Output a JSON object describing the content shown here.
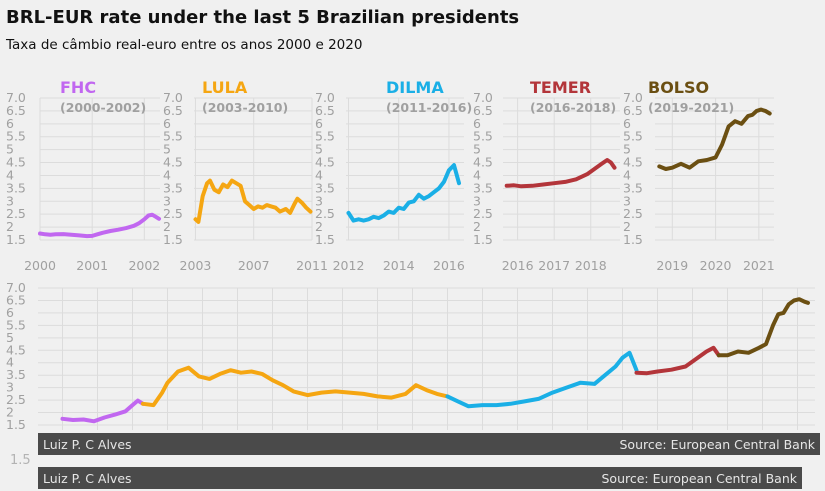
{
  "title": "BRL-EUR rate under the last 5 Brazilian presidents",
  "subtitle": "Taxa de câmbio real-euro entre os anos 2000 e 2020",
  "footer": {
    "author": "Luiz P. C Alves",
    "source": "Source: European Central Bank",
    "author_dup": "Luiz P. C Alves",
    "source_dup": "Source: European Central Bank"
  },
  "colors": {
    "FHC": "#c167f0",
    "LULA": "#f5a612",
    "DILMA": "#1aafe6",
    "TEMER": "#b3353a",
    "BOLSO": "#6b4f12",
    "grid": "#dcdcdc",
    "ticks": "#a0a0a0"
  },
  "chart_data": [
    {
      "type": "line",
      "name": "FHC",
      "period": "(2000-2002)",
      "xlim": [
        2000,
        2002.3
      ],
      "ylim": [
        1.5,
        7.0
      ],
      "yticks": [
        "1.5",
        "2",
        "2.5",
        "3",
        "3.5",
        "4",
        "4.5",
        "5",
        "5.5",
        "6",
        "6.5",
        "7.0"
      ],
      "xticks": [
        {
          "v": 2000,
          "label": "2000"
        },
        {
          "v": 2001,
          "label": "2001"
        },
        {
          "v": 2002,
          "label": "2002"
        }
      ],
      "x": [
        2000.0,
        2000.1,
        2000.2,
        2000.3,
        2000.45,
        2000.6,
        2000.75,
        2000.9,
        2001.0,
        2001.1,
        2001.2,
        2001.35,
        2001.5,
        2001.65,
        2001.8,
        2001.9,
        2002.0,
        2002.08,
        2002.15,
        2002.22,
        2002.28
      ],
      "y": [
        1.75,
        1.72,
        1.7,
        1.72,
        1.73,
        1.7,
        1.68,
        1.65,
        1.66,
        1.72,
        1.78,
        1.85,
        1.9,
        1.96,
        2.05,
        2.15,
        2.3,
        2.45,
        2.48,
        2.4,
        2.32
      ]
    },
    {
      "type": "line",
      "name": "LULA",
      "period": "(2003-2010)",
      "xlim": [
        2002.9,
        2011.0
      ],
      "ylim": [
        1.5,
        7.0
      ],
      "yticks": [
        "1.5",
        "2",
        "2.5",
        "3",
        "3.5",
        "4",
        "4.5",
        "5",
        "5.5",
        "6",
        "6.5",
        "7.0"
      ],
      "xticks": [
        {
          "v": 2003,
          "label": "2003"
        },
        {
          "v": 2007,
          "label": "2007"
        },
        {
          "v": 2011,
          "label": "2011"
        }
      ],
      "x": [
        2003.0,
        2003.2,
        2003.5,
        2003.8,
        2004.0,
        2004.3,
        2004.6,
        2004.9,
        2005.2,
        2005.5,
        2005.8,
        2006.1,
        2006.4,
        2006.7,
        2007.0,
        2007.3,
        2007.6,
        2007.9,
        2008.2,
        2008.5,
        2008.8,
        2009.0,
        2009.2,
        2009.5,
        2009.8,
        2010.0,
        2010.3,
        2010.6,
        2010.9
      ],
      "y": [
        2.3,
        2.2,
        3.2,
        3.7,
        3.8,
        3.45,
        3.35,
        3.65,
        3.55,
        3.8,
        3.7,
        3.6,
        3.0,
        2.85,
        2.7,
        2.8,
        2.75,
        2.85,
        2.8,
        2.75,
        2.6,
        2.65,
        2.7,
        2.55,
        2.9,
        3.1,
        2.95,
        2.75,
        2.6
      ]
    },
    {
      "type": "line",
      "name": "DILMA",
      "period": "(2011-2016)",
      "xlim": [
        2011.9,
        2016.6
      ],
      "ylim": [
        1.5,
        7.0
      ],
      "yticks": [
        "1.5",
        "2",
        "2.5",
        "3",
        "3.5",
        "4",
        "4.5",
        "5",
        "5.5",
        "6",
        "6.5",
        "7.0"
      ],
      "xticks": [
        {
          "v": 2012,
          "label": "2012"
        },
        {
          "v": 2014,
          "label": "2014"
        },
        {
          "v": 2016,
          "label": "2016"
        }
      ],
      "x": [
        2012.0,
        2012.2,
        2012.4,
        2012.6,
        2012.8,
        2013.0,
        2013.2,
        2013.4,
        2013.6,
        2013.8,
        2014.0,
        2014.2,
        2014.4,
        2014.6,
        2014.8,
        2015.0,
        2015.2,
        2015.4,
        2015.6,
        2015.8,
        2016.0,
        2016.2,
        2016.4
      ],
      "y": [
        2.55,
        2.25,
        2.3,
        2.25,
        2.3,
        2.4,
        2.35,
        2.45,
        2.6,
        2.55,
        2.75,
        2.7,
        2.95,
        3.0,
        3.25,
        3.1,
        3.2,
        3.35,
        3.5,
        3.75,
        4.2,
        4.4,
        3.7
      ]
    },
    {
      "type": "line",
      "name": "TEMER",
      "period": "(2016-2018)",
      "xlim": [
        2015.6,
        2018.8
      ],
      "ylim": [
        1.5,
        7.0
      ],
      "yticks": [
        "1.5",
        "2",
        "2.5",
        "3",
        "3.5",
        "4",
        "4.5",
        "5",
        "5.5",
        "6",
        "6.5",
        "7.0"
      ],
      "xticks": [
        {
          "v": 2016,
          "label": "2016"
        },
        {
          "v": 2017,
          "label": "2017"
        },
        {
          "v": 2018,
          "label": "2018"
        }
      ],
      "x": [
        2015.7,
        2015.9,
        2016.1,
        2016.4,
        2016.7,
        2017.0,
        2017.3,
        2017.6,
        2017.9,
        2018.1,
        2018.3,
        2018.45,
        2018.55,
        2018.65
      ],
      "y": [
        3.6,
        3.62,
        3.58,
        3.6,
        3.65,
        3.7,
        3.75,
        3.85,
        4.05,
        4.25,
        4.45,
        4.6,
        4.5,
        4.3
      ]
    },
    {
      "type": "line",
      "name": "BOLSO",
      "period": "(2019-2021)",
      "xlim": [
        2018.6,
        2021.35
      ],
      "ylim": [
        1.5,
        7.0
      ],
      "yticks": [
        "1.5",
        "2",
        "2.5",
        "3",
        "3.5",
        "4",
        "4.5",
        "5",
        "5.5",
        "6",
        "6.5",
        "7.0"
      ],
      "xticks": [
        {
          "v": 2019,
          "label": "2019"
        },
        {
          "v": 2020,
          "label": "2020"
        },
        {
          "v": 2021,
          "label": "2021"
        }
      ],
      "x": [
        2018.7,
        2018.85,
        2019.0,
        2019.2,
        2019.4,
        2019.6,
        2019.8,
        2020.0,
        2020.15,
        2020.3,
        2020.45,
        2020.6,
        2020.75,
        2020.85,
        2020.95,
        2021.05,
        2021.15,
        2021.25
      ],
      "y": [
        4.35,
        4.25,
        4.3,
        4.45,
        4.3,
        4.55,
        4.6,
        4.7,
        5.2,
        5.9,
        6.1,
        6.0,
        6.3,
        6.35,
        6.5,
        6.55,
        6.5,
        6.4
      ]
    },
    {
      "type": "line",
      "name": "combined",
      "xlim": [
        1999.3,
        2021.5
      ],
      "ylim": [
        1.3,
        7.0
      ],
      "yticks": [
        "1.5",
        "2",
        "2.5",
        "3",
        "3.5",
        "4",
        "4.5",
        "5",
        "5.5",
        "6",
        "6.5",
        "7.0"
      ],
      "series": [
        {
          "name": "FHC",
          "x": [
            2000.0,
            2000.3,
            2000.6,
            2000.9,
            2001.2,
            2001.5,
            2001.8,
            2002.0,
            2002.15,
            2002.3
          ],
          "y": [
            1.75,
            1.7,
            1.72,
            1.65,
            1.8,
            1.92,
            2.05,
            2.3,
            2.48,
            2.35
          ]
        },
        {
          "name": "LULA",
          "x": [
            2002.3,
            2002.6,
            2002.85,
            2003.0,
            2003.3,
            2003.6,
            2003.9,
            2004.2,
            2004.5,
            2004.8,
            2005.1,
            2005.4,
            2005.7,
            2006.0,
            2006.3,
            2006.6,
            2007.0,
            2007.4,
            2007.8,
            2008.2,
            2008.6,
            2009.0,
            2009.4,
            2009.8,
            2010.1,
            2010.4,
            2010.7,
            2011.0
          ],
          "y": [
            2.35,
            2.3,
            2.8,
            3.2,
            3.65,
            3.8,
            3.45,
            3.35,
            3.55,
            3.7,
            3.6,
            3.65,
            3.55,
            3.3,
            3.1,
            2.85,
            2.7,
            2.8,
            2.85,
            2.8,
            2.75,
            2.65,
            2.6,
            2.75,
            3.1,
            2.9,
            2.75,
            2.65
          ]
        },
        {
          "name": "DILMA",
          "x": [
            2011.0,
            2011.3,
            2011.6,
            2012.0,
            2012.4,
            2012.8,
            2013.2,
            2013.6,
            2014.0,
            2014.4,
            2014.8,
            2015.2,
            2015.5,
            2015.8,
            2016.0,
            2016.2,
            2016.4
          ],
          "y": [
            2.65,
            2.45,
            2.25,
            2.3,
            2.3,
            2.35,
            2.45,
            2.55,
            2.8,
            3.0,
            3.2,
            3.15,
            3.5,
            3.85,
            4.2,
            4.4,
            3.7
          ]
        },
        {
          "name": "TEMER",
          "x": [
            2016.4,
            2016.7,
            2017.0,
            2017.4,
            2017.8,
            2018.1,
            2018.4,
            2018.6,
            2018.75
          ],
          "y": [
            3.6,
            3.58,
            3.65,
            3.72,
            3.85,
            4.15,
            4.45,
            4.6,
            4.3
          ]
        },
        {
          "name": "BOLSO",
          "x": [
            2018.75,
            2019.0,
            2019.3,
            2019.6,
            2019.9,
            2020.1,
            2020.3,
            2020.45,
            2020.6,
            2020.75,
            2020.9,
            2021.05,
            2021.2,
            2021.3
          ],
          "y": [
            4.3,
            4.3,
            4.45,
            4.4,
            4.6,
            4.75,
            5.5,
            5.95,
            6.0,
            6.35,
            6.5,
            6.55,
            6.45,
            6.4
          ]
        }
      ]
    }
  ]
}
